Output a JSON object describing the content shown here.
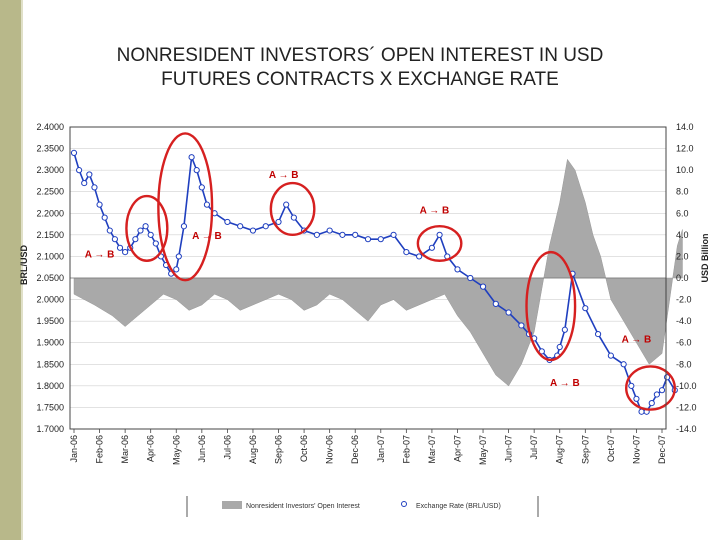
{
  "colors": {
    "accent_bar": "#b8b88a",
    "area": "#a9a9a9",
    "line": "#1f3fbf",
    "marker_fill": "#ffffff",
    "circle": "#d62020",
    "annot": "#c00000"
  },
  "chart_data": {
    "type": "line",
    "title_lines": [
      "NONRESIDENT INVESTORS´ OPEN INTEREST IN USD",
      "FUTURES CONTRACTS X EXCHANGE RATE"
    ],
    "ylabel_left": "BRL/USD",
    "ylabel_right": "USD Billion",
    "ylim_left": [
      1.7,
      2.4
    ],
    "ylim_right": [
      -14,
      14
    ],
    "left_ticks": [
      "2.4000",
      "2.3500",
      "2.3000",
      "2.2500",
      "2.2000",
      "2.1500",
      "2.1000",
      "2.0500",
      "2.0000",
      "1.9500",
      "1.9000",
      "1.8500",
      "1.8000",
      "1.7500",
      "1.7000"
    ],
    "right_ticks": [
      "14.0",
      "12.0",
      "10.0",
      "8.0",
      "6.0",
      "4.0",
      "2.0",
      "0.0",
      "-2.0",
      "-4.0",
      "-6.0",
      "-8.0",
      "-10.0",
      "-12.0",
      "-14.0"
    ],
    "categories": [
      "Jan-06",
      "Feb-06",
      "Mar-06",
      "Apr-06",
      "May-06",
      "Jun-06",
      "Jul-06",
      "Aug-06",
      "Sep-06",
      "Oct-06",
      "Nov-06",
      "Dec-06",
      "Jan-07",
      "Feb-07",
      "Mar-07",
      "Apr-07",
      "May-07",
      "Jun-07",
      "Jul-07",
      "Aug-07",
      "Sep-07",
      "Oct-07",
      "Nov-07",
      "Dec-07"
    ],
    "series": [
      {
        "name": "Exchange Rate (BRL/USD)",
        "type": "line",
        "axis": "left",
        "x": [
          0,
          0.2,
          0.4,
          0.6,
          0.8,
          1,
          1.2,
          1.4,
          1.6,
          1.8,
          2,
          2.2,
          2.4,
          2.6,
          2.8,
          3,
          3.2,
          3.4,
          3.6,
          3.8,
          4,
          4.1,
          4.3,
          4.6,
          4.8,
          5,
          5.2,
          5.5,
          6,
          6.5,
          7,
          7.5,
          8,
          8.3,
          8.6,
          9,
          9.5,
          10,
          10.5,
          11,
          11.5,
          12,
          12.5,
          13,
          13.5,
          14,
          14.3,
          14.6,
          15,
          15.5,
          16,
          16.5,
          17,
          17.5,
          17.8,
          18,
          18.3,
          18.6,
          18.9,
          19,
          19.2,
          19.5,
          20,
          20.5,
          21,
          21.5,
          21.8,
          22,
          22.2,
          22.4,
          22.6,
          22.8,
          23,
          23.2,
          23.5
        ],
        "values": [
          2.34,
          2.3,
          2.27,
          2.29,
          2.26,
          2.22,
          2.19,
          2.16,
          2.14,
          2.12,
          2.11,
          2.12,
          2.14,
          2.16,
          2.17,
          2.15,
          2.13,
          2.1,
          2.08,
          2.06,
          2.07,
          2.1,
          2.17,
          2.33,
          2.3,
          2.26,
          2.22,
          2.2,
          2.18,
          2.17,
          2.16,
          2.17,
          2.18,
          2.22,
          2.19,
          2.16,
          2.15,
          2.16,
          2.15,
          2.15,
          2.14,
          2.14,
          2.15,
          2.11,
          2.1,
          2.12,
          2.15,
          2.1,
          2.07,
          2.05,
          2.03,
          1.99,
          1.97,
          1.94,
          1.92,
          1.91,
          1.88,
          1.86,
          1.87,
          1.89,
          1.93,
          2.06,
          1.98,
          1.92,
          1.87,
          1.85,
          1.8,
          1.77,
          1.74,
          1.74,
          1.76,
          1.78,
          1.79,
          1.82,
          1.79
        ]
      },
      {
        "name": "Nonresident Investors' Open Interest",
        "type": "area",
        "axis": "right",
        "x": [
          0,
          0.8,
          1.5,
          2,
          2.5,
          3,
          3.5,
          4,
          4.5,
          5,
          5.5,
          6,
          6.5,
          7,
          7.5,
          8,
          8.5,
          9,
          9.5,
          10,
          10.5,
          11,
          11.5,
          12,
          12.5,
          13,
          13.5,
          14,
          14.5,
          15,
          15.5,
          16,
          16.5,
          17,
          17.5,
          18,
          18.3,
          18.6,
          19,
          19.3,
          19.6,
          20,
          20.3,
          20.6,
          21,
          21.5,
          22,
          22.5,
          23,
          23.3,
          23.6,
          23.8
        ],
        "values": [
          -1.5,
          -2.5,
          -3.5,
          -4.5,
          -3.5,
          -2.5,
          -1.5,
          -2.0,
          -3.0,
          -2.5,
          -1.5,
          -2.0,
          -3.0,
          -2.5,
          -2.0,
          -1.5,
          -2.0,
          -3.0,
          -2.5,
          -1.5,
          -2.0,
          -3.0,
          -4.0,
          -2.5,
          -2.0,
          -3.0,
          -2.5,
          -2.0,
          -1.5,
          -3.5,
          -5.0,
          -7.0,
          -9.0,
          -10.0,
          -8.0,
          -5.0,
          -1.0,
          3.0,
          7.0,
          11.0,
          10.0,
          7.0,
          4.0,
          2.0,
          -2.0,
          -4.0,
          -6.0,
          -8.0,
          -7.0,
          -2.0,
          3.0,
          4.5
        ]
      }
    ],
    "legend": [
      "Nonresident Investors' Open Interest",
      "Exchange Rate (BRL/USD)"
    ],
    "legend_position": "bottom",
    "annotations": [
      {
        "text": "A → B",
        "x": 1.0,
        "y": 2.098
      },
      {
        "text": "A → B",
        "x": 8.2,
        "y": 2.282
      },
      {
        "text": "A → B",
        "x": 14.1,
        "y": 2.2
      },
      {
        "text": "A → B",
        "x": 5.2,
        "y": 2.14
      },
      {
        "text": "A → B",
        "x": 22.0,
        "y": 1.9
      },
      {
        "text": "A → B",
        "x": 19.2,
        "y": 1.8
      }
    ],
    "highlight_circles": [
      {
        "x": 2.85,
        "y": 2.165,
        "rx": 0.8,
        "ry": 0.075
      },
      {
        "x": 4.35,
        "y": 2.215,
        "rx": 1.05,
        "ry": 0.17
      },
      {
        "x": 8.55,
        "y": 2.21,
        "rx": 0.85,
        "ry": 0.06
      },
      {
        "x": 14.3,
        "y": 2.13,
        "rx": 0.85,
        "ry": 0.04
      },
      {
        "x": 18.65,
        "y": 1.985,
        "rx": 0.95,
        "ry": 0.125
      },
      {
        "x": 22.55,
        "y": 1.795,
        "rx": 0.95,
        "ry": 0.05
      }
    ]
  }
}
